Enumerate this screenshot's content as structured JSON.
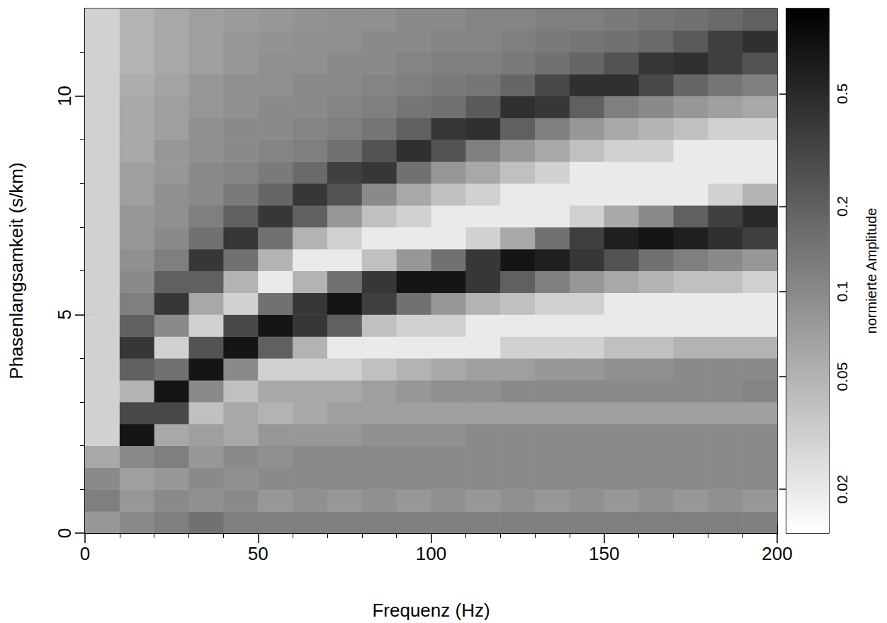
{
  "chart_data": {
    "type": "heatmap",
    "x_label": "Frequenz (Hz)",
    "y_label": "Phasenlangsamkeit (s/km)",
    "xlim": [
      0,
      200
    ],
    "xticks": [
      0,
      50,
      100,
      150,
      200
    ],
    "ylim": [
      0,
      12
    ],
    "yticks": [
      0,
      5,
      10
    ],
    "x": [
      5,
      15,
      25,
      35,
      45,
      55,
      65,
      75,
      85,
      95,
      105,
      115,
      125,
      135,
      145,
      155,
      165,
      175,
      185,
      195
    ],
    "y": [
      0.25,
      0.75,
      1.25,
      1.75,
      2.25,
      2.75,
      3.25,
      3.75,
      4.25,
      4.75,
      5.25,
      5.75,
      6.25,
      6.75,
      7.25,
      7.75,
      8.25,
      8.75,
      9.25,
      9.75,
      10.25,
      10.75,
      11.25,
      11.75
    ],
    "values": [
      [
        0.08,
        0.12,
        0.1,
        0.06,
        0.03,
        0.03,
        0.03,
        0.03,
        0.03,
        0.03,
        0.03,
        0.03,
        0.03,
        0.03,
        0.03,
        0.03,
        0.03,
        0.03,
        0.03,
        0.03,
        0.03,
        0.03,
        0.03,
        0.03
      ],
      [
        0.1,
        0.08,
        0.07,
        0.1,
        0.7,
        0.3,
        0.05,
        0.2,
        0.4,
        0.2,
        0.12,
        0.1,
        0.09,
        0.08,
        0.08,
        0.07,
        0.07,
        0.06,
        0.06,
        0.06,
        0.055,
        0.05,
        0.05,
        0.05
      ],
      [
        0.12,
        0.1,
        0.08,
        0.12,
        0.06,
        0.3,
        0.7,
        0.15,
        0.03,
        0.1,
        0.4,
        0.2,
        0.12,
        0.1,
        0.09,
        0.09,
        0.08,
        0.08,
        0.07,
        0.07,
        0.065,
        0.06,
        0.06,
        0.06
      ],
      [
        0.15,
        0.09,
        0.1,
        0.08,
        0.07,
        0.04,
        0.1,
        0.7,
        0.25,
        0.03,
        0.06,
        0.2,
        0.4,
        0.15,
        0.12,
        0.1,
        0.1,
        0.09,
        0.09,
        0.08,
        0.08,
        0.07,
        0.07,
        0.07
      ],
      [
        0.12,
        0.1,
        0.09,
        0.1,
        0.06,
        0.06,
        0.04,
        0.1,
        0.7,
        0.3,
        0.03,
        0.05,
        0.15,
        0.4,
        0.2,
        0.13,
        0.11,
        0.1,
        0.1,
        0.09,
        0.09,
        0.08,
        0.08,
        0.075
      ],
      [
        0.12,
        0.08,
        0.1,
        0.09,
        0.08,
        0.05,
        0.06,
        0.03,
        0.2,
        0.7,
        0.15,
        0.02,
        0.05,
        0.15,
        0.4,
        0.18,
        0.13,
        0.11,
        0.1,
        0.1,
        0.09,
        0.09,
        0.085,
        0.08
      ],
      [
        0.12,
        0.09,
        0.1,
        0.1,
        0.08,
        0.06,
        0.06,
        0.03,
        0.05,
        0.4,
        0.4,
        0.05,
        0.02,
        0.05,
        0.2,
        0.4,
        0.17,
        0.12,
        0.11,
        0.1,
        0.1,
        0.09,
        0.09,
        0.085
      ],
      [
        0.12,
        0.08,
        0.1,
        0.1,
        0.08,
        0.07,
        0.06,
        0.03,
        0.02,
        0.2,
        0.7,
        0.15,
        0.02,
        0.03,
        0.08,
        0.25,
        0.35,
        0.15,
        0.12,
        0.11,
        0.1,
        0.1,
        0.09,
        0.09
      ],
      [
        0.12,
        0.09,
        0.1,
        0.1,
        0.09,
        0.07,
        0.07,
        0.04,
        0.02,
        0.04,
        0.35,
        0.4,
        0.04,
        0.02,
        0.04,
        0.1,
        0.4,
        0.25,
        0.14,
        0.12,
        0.11,
        0.1,
        0.1,
        0.09
      ],
      [
        0.12,
        0.08,
        0.1,
        0.1,
        0.09,
        0.07,
        0.08,
        0.05,
        0.02,
        0.03,
        0.15,
        0.7,
        0.08,
        0.02,
        0.03,
        0.06,
        0.15,
        0.45,
        0.2,
        0.14,
        0.12,
        0.11,
        0.1,
        0.1
      ],
      [
        0.12,
        0.09,
        0.1,
        0.1,
        0.09,
        0.07,
        0.09,
        0.06,
        0.02,
        0.03,
        0.08,
        0.7,
        0.15,
        0.02,
        0.02,
        0.04,
        0.08,
        0.25,
        0.4,
        0.15,
        0.13,
        0.12,
        0.11,
        0.1
      ],
      [
        0.12,
        0.08,
        0.1,
        0.1,
        0.1,
        0.07,
        0.09,
        0.07,
        0.02,
        0.02,
        0.05,
        0.4,
        0.4,
        0.03,
        0.02,
        0.03,
        0.06,
        0.12,
        0.45,
        0.22,
        0.14,
        0.12,
        0.11,
        0.11
      ],
      [
        0.12,
        0.09,
        0.1,
        0.1,
        0.1,
        0.07,
        0.1,
        0.07,
        0.03,
        0.02,
        0.04,
        0.2,
        0.7,
        0.06,
        0.02,
        0.02,
        0.04,
        0.08,
        0.2,
        0.45,
        0.18,
        0.13,
        0.12,
        0.11
      ],
      [
        0.12,
        0.08,
        0.1,
        0.1,
        0.1,
        0.07,
        0.1,
        0.08,
        0.03,
        0.02,
        0.03,
        0.12,
        0.6,
        0.15,
        0.02,
        0.02,
        0.03,
        0.06,
        0.12,
        0.4,
        0.3,
        0.15,
        0.13,
        0.12
      ],
      [
        0.12,
        0.09,
        0.1,
        0.1,
        0.1,
        0.07,
        0.1,
        0.08,
        0.03,
        0.02,
        0.03,
        0.08,
        0.4,
        0.35,
        0.03,
        0.02,
        0.02,
        0.04,
        0.08,
        0.2,
        0.45,
        0.18,
        0.14,
        0.12
      ],
      [
        0.12,
        0.08,
        0.1,
        0.1,
        0.1,
        0.07,
        0.1,
        0.09,
        0.04,
        0.02,
        0.02,
        0.06,
        0.25,
        0.6,
        0.06,
        0.02,
        0.02,
        0.03,
        0.06,
        0.12,
        0.45,
        0.25,
        0.15,
        0.13
      ],
      [
        0.12,
        0.09,
        0.1,
        0.1,
        0.1,
        0.07,
        0.1,
        0.09,
        0.04,
        0.02,
        0.02,
        0.05,
        0.15,
        0.7,
        0.1,
        0.02,
        0.02,
        0.03,
        0.05,
        0.1,
        0.3,
        0.4,
        0.17,
        0.14
      ],
      [
        0.12,
        0.08,
        0.1,
        0.1,
        0.1,
        0.07,
        0.1,
        0.1,
        0.05,
        0.02,
        0.02,
        0.04,
        0.12,
        0.6,
        0.2,
        0.02,
        0.02,
        0.02,
        0.04,
        0.08,
        0.18,
        0.45,
        0.22,
        0.15
      ],
      [
        0.12,
        0.09,
        0.1,
        0.1,
        0.1,
        0.07,
        0.1,
        0.1,
        0.05,
        0.02,
        0.02,
        0.04,
        0.1,
        0.45,
        0.35,
        0.03,
        0.02,
        0.02,
        0.03,
        0.07,
        0.14,
        0.35,
        0.35,
        0.17
      ],
      [
        0.12,
        0.08,
        0.1,
        0.1,
        0.1,
        0.07,
        0.11,
        0.1,
        0.05,
        0.02,
        0.02,
        0.03,
        0.08,
        0.35,
        0.5,
        0.05,
        0.02,
        0.02,
        0.03,
        0.06,
        0.12,
        0.25,
        0.45,
        0.2
      ]
    ],
    "colorbar": {
      "label": "normierte Amplitude",
      "lim": [
        0.014,
        1
      ],
      "ticks": [
        0.02,
        0.05,
        0.1,
        0.2,
        0.5
      ],
      "log": true,
      "color": [
        "#ffffff",
        "#000000"
      ]
    }
  }
}
